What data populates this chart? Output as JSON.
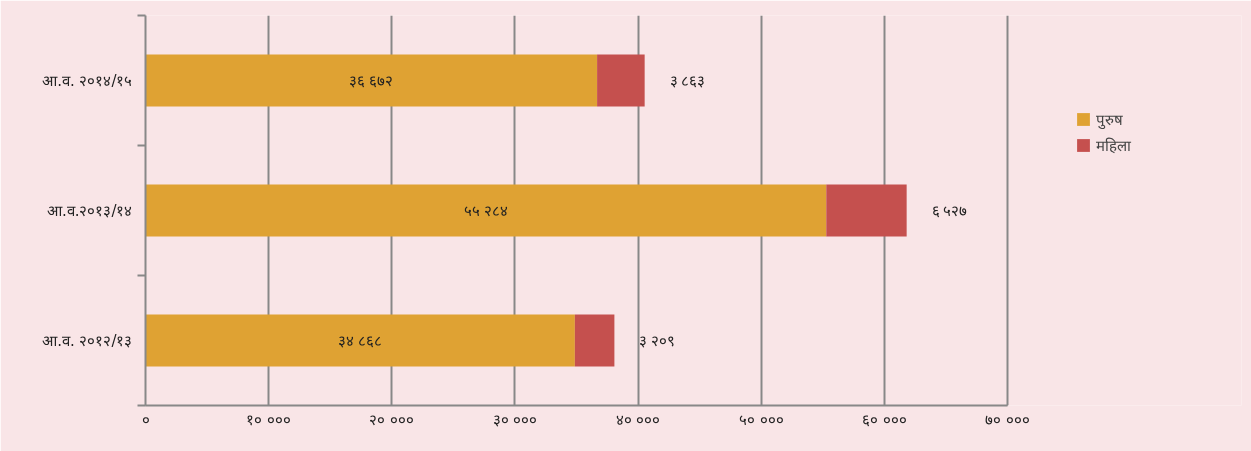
{
  "chart_data": {
    "type": "bar",
    "orientation": "horizontal",
    "stacked": true,
    "categories": [
      "आ.व. २०१४/१५",
      "आ.व.२०१३/१४",
      "आ.व. २०१२/१३"
    ],
    "series": [
      {
        "name": "पुरुष",
        "color": "#dfa233",
        "values": [
          36672,
          55284,
          34868
        ],
        "value_labels": [
          "३६ ६७२",
          "५५ २८४",
          "३४ ८६८"
        ]
      },
      {
        "name": "महिला",
        "color": "#c5504e",
        "values": [
          3863,
          6527,
          3209
        ],
        "value_labels": [
          "३ ८६३",
          "६ ५२७",
          "३ २०९"
        ]
      }
    ],
    "xlim": [
      0,
      70000
    ],
    "xticks": [
      {
        "value": 0,
        "label": "०"
      },
      {
        "value": 10000,
        "label": "१० ०००"
      },
      {
        "value": 20000,
        "label": "२० ०००"
      },
      {
        "value": 30000,
        "label": "३० ०००"
      },
      {
        "value": 40000,
        "label": "४० ०००"
      },
      {
        "value": 50000,
        "label": "५० ०००"
      },
      {
        "value": 60000,
        "label": "६० ०००"
      },
      {
        "value": 70000,
        "label": "७० ०००"
      }
    ],
    "grid": "x",
    "legend": "right"
  }
}
